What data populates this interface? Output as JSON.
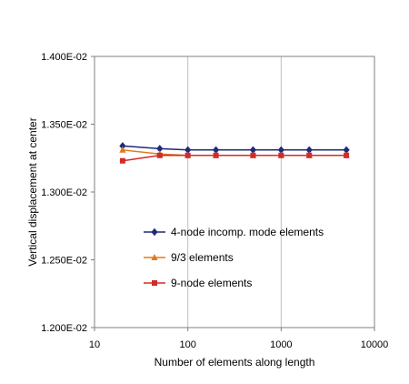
{
  "chart_data": {
    "type": "line",
    "title": "",
    "xlabel": "Number of elements along length",
    "ylabel": "Vertical displacement at center",
    "x_scale": "log",
    "xlim": [
      10,
      10000
    ],
    "ylim": [
      0.012,
      0.014
    ],
    "x_ticks": [
      10,
      100,
      1000,
      10000
    ],
    "x_tick_labels": [
      "10",
      "100",
      "1000",
      "10000"
    ],
    "y_ticks": [
      0.012,
      0.0125,
      0.013,
      0.0135,
      0.014
    ],
    "y_tick_labels": [
      "1.200E-02",
      "1.250E-02",
      "1.300E-02",
      "1.350E-02",
      "1.400E-02"
    ],
    "grid": "vertical gridlines at major x ticks",
    "legend_position": "inside, lower-center",
    "x": [
      20,
      50,
      100,
      200,
      500,
      1000,
      2000,
      5000
    ],
    "series": [
      {
        "name": "4-node incomp. mode elements",
        "color": "#1f2a7a",
        "marker": "diamond",
        "values": [
          0.01334,
          0.01332,
          0.01331,
          0.01331,
          0.01331,
          0.01331,
          0.01331,
          0.01331
        ]
      },
      {
        "name": "9/3 elements",
        "color": "#e07a1f",
        "marker": "triangle",
        "values": [
          0.01331,
          0.01328,
          0.01327,
          0.01327,
          0.01327,
          0.01327,
          0.01327,
          0.01327
        ]
      },
      {
        "name": "9-node elements",
        "color": "#d42a2a",
        "marker": "square",
        "values": [
          0.01323,
          0.01327,
          0.01327,
          0.01327,
          0.01327,
          0.01327,
          0.01327,
          0.01327
        ]
      }
    ]
  }
}
